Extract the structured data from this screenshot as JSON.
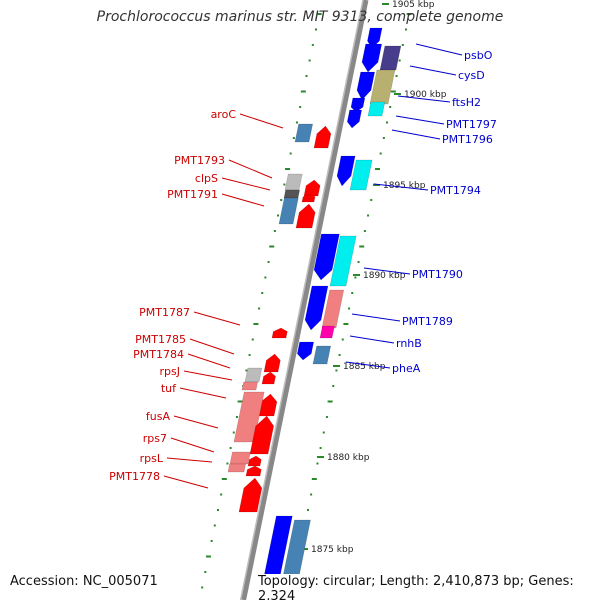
{
  "title": "Prochlorococcus marinus str. MIT 9313, complete genome",
  "accession": "Accession: NC_005071",
  "summary": "Topology: circular; Length: 2,410,873 bp; Genes: 2,324",
  "colors": {
    "forward_label": "#cc0000",
    "reverse_label": "#0000cc",
    "backbone": "#888888",
    "tick": "#2a8a2a",
    "cds_forward": "#ff0000",
    "cds_reverse": "#0000ff",
    "rrna_like": "#f08080",
    "trna_like": "#4682b4",
    "misc": "#00eeee",
    "other_gold": "#b8b070",
    "other_purple": "#483d8b",
    "other_magenta": "#ff00aa",
    "other_grey": "#bbbbbb"
  },
  "scale_labels": [
    {
      "kbp": 1905,
      "text": "1905 kbp"
    },
    {
      "kbp": 1900,
      "text": "1900 kbp"
    },
    {
      "kbp": 1895,
      "text": "1895 kbp"
    },
    {
      "kbp": 1890,
      "text": "1890 kbp"
    },
    {
      "kbp": 1885,
      "text": "1885 kbp"
    },
    {
      "kbp": 1880,
      "text": "1880 kbp"
    },
    {
      "kbp": 1875,
      "text": "1875 kbp"
    }
  ],
  "genes_left": [
    {
      "name": "aroC"
    },
    {
      "name": "PMT1793"
    },
    {
      "name": "clpS"
    },
    {
      "name": "PMT1791"
    },
    {
      "name": "PMT1787"
    },
    {
      "name": "PMT1785"
    },
    {
      "name": "PMT1784"
    },
    {
      "name": "rpsJ"
    },
    {
      "name": "tuf"
    },
    {
      "name": "fusA"
    },
    {
      "name": "rps7"
    },
    {
      "name": "rpsL"
    },
    {
      "name": "PMT1778"
    }
  ],
  "genes_right": [
    {
      "name": "psbO"
    },
    {
      "name": "cysD"
    },
    {
      "name": "ftsH2"
    },
    {
      "name": "PMT1797"
    },
    {
      "name": "PMT1796"
    },
    {
      "name": "PMT1794"
    },
    {
      "name": "PMT1790"
    },
    {
      "name": "PMT1789"
    },
    {
      "name": "rnhB"
    },
    {
      "name": "pheA"
    }
  ]
}
